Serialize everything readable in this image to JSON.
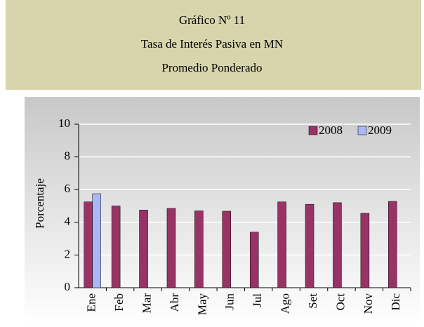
{
  "chart_data": {
    "type": "bar",
    "title_lines": [
      "Gráfico Nº 11",
      "Tasa de Interés Pasiva en MN",
      "Promedio Ponderado"
    ],
    "y_label": "Porcentaje",
    "categories": [
      "Ene",
      "Feb",
      "Mar",
      "Abr",
      "May",
      "Jun",
      "Jul",
      "Ago",
      "Set",
      "Oct",
      "Nov",
      "Dic"
    ],
    "series": [
      {
        "name": "2008",
        "color": "#993366",
        "values": [
          5.25,
          5.0,
          4.75,
          4.85,
          4.7,
          4.68,
          3.4,
          5.25,
          5.1,
          5.2,
          4.55,
          5.28
        ]
      },
      {
        "name": "2009",
        "color": "#a9b8f5",
        "values": [
          5.75,
          null,
          null,
          null,
          null,
          null,
          null,
          null,
          null,
          null,
          null,
          null
        ]
      }
    ],
    "ylim": [
      0,
      10
    ],
    "yticks": [
      0,
      2,
      4,
      6,
      8,
      10
    ],
    "grid": true,
    "legend": "top-right"
  }
}
